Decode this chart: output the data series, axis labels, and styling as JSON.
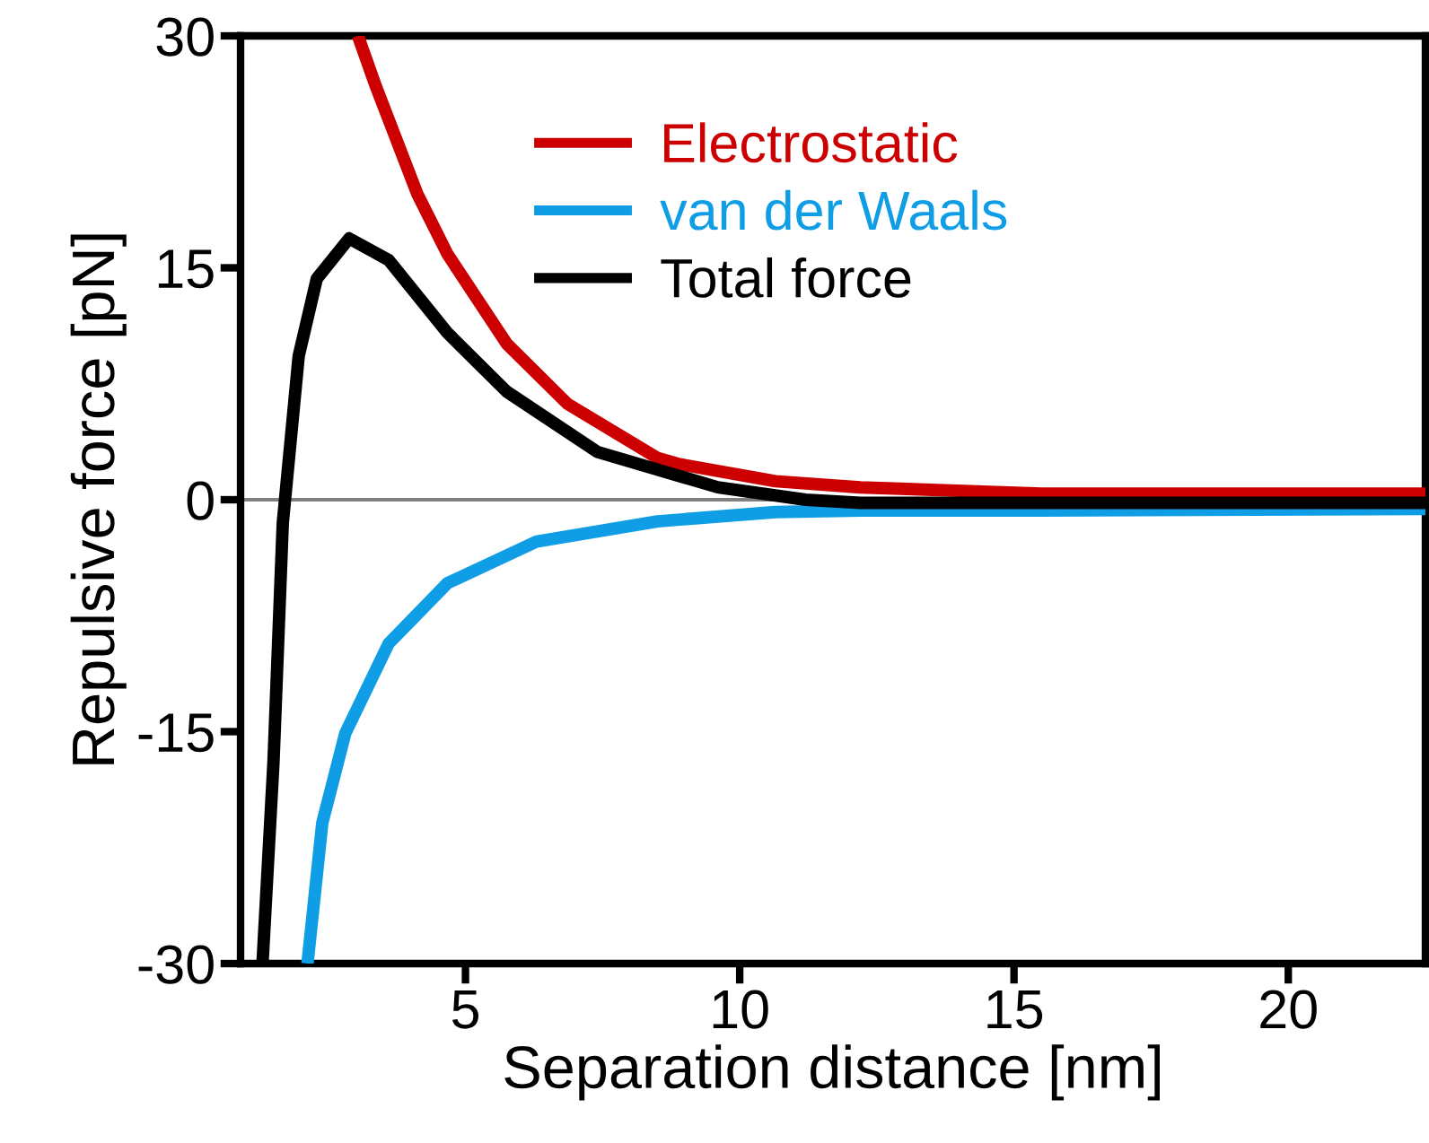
{
  "chart_data": {
    "type": "line",
    "xlabel": "Separation distance [nm]",
    "ylabel": "Repulsive force [pN]",
    "xlim": [
      0.9,
      22.5
    ],
    "ylim": [
      -30,
      30
    ],
    "xticks": [
      5,
      10,
      15,
      20
    ],
    "yticks": [
      -30,
      -15,
      0,
      15,
      30
    ],
    "grid": false,
    "legend": "top",
    "marker": "none",
    "line_style": "solid",
    "ref_lines": [
      {
        "axis": "y",
        "value": 0,
        "color": "#808080"
      }
    ],
    "series": [
      {
        "name": "Electrostatic",
        "color": "#cc0000",
        "x": [
          3.04,
          3.37,
          4.12,
          4.67,
          5.75,
          6.86,
          8.5,
          8.9,
          10.65,
          12.2,
          15.5,
          22.5
        ],
        "values": [
          30,
          26.7,
          19.8,
          15.9,
          10.1,
          6.2,
          2.7,
          2.3,
          1.2,
          0.8,
          0.4,
          0.4
        ]
      },
      {
        "name": "van der Waals",
        "color": "#0f9ee6",
        "x": [
          2.12,
          2.39,
          2.81,
          3.6,
          4.67,
          6.3,
          8.5,
          10.65,
          12.2,
          15.5,
          22.5
        ],
        "values": [
          -30,
          -20.9,
          -15.1,
          -9.3,
          -5.4,
          -2.7,
          -1.4,
          -0.8,
          -0.7,
          -0.7,
          -0.6
        ]
      },
      {
        "name": "Total force",
        "color": "#000000",
        "x": [
          1.3,
          1.5,
          1.67,
          1.96,
          2.29,
          2.88,
          3.6,
          4.67,
          5.75,
          7.4,
          9.6,
          11.2,
          12.2,
          15.5,
          22.5
        ],
        "values": [
          -30,
          -17,
          -1.5,
          9.3,
          14.3,
          16.9,
          15.5,
          10.8,
          7.0,
          3.1,
          0.8,
          0.0,
          -0.2,
          -0.2,
          -0.2
        ]
      }
    ]
  }
}
